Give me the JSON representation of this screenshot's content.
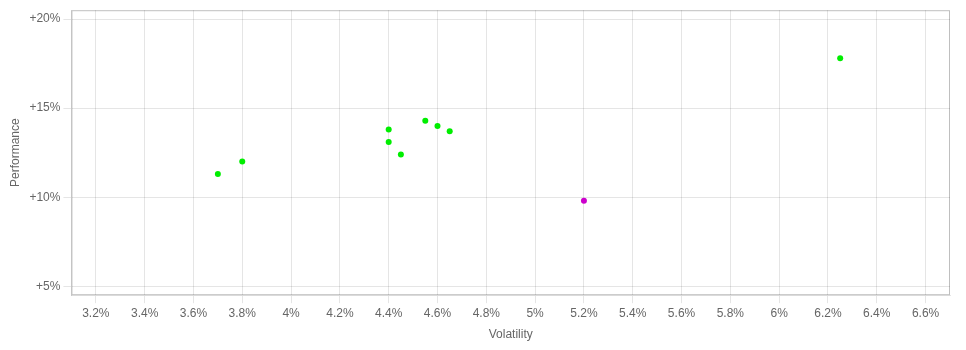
{
  "chart_data": {
    "type": "scatter",
    "xlabel": "Volatility",
    "ylabel": "Performance",
    "xlim": [
      0.031,
      0.067
    ],
    "ylim": [
      0.045,
      0.205
    ],
    "xticks": [
      {
        "value": 0.032,
        "label": "3.2%"
      },
      {
        "value": 0.034,
        "label": "3.4%"
      },
      {
        "value": 0.036,
        "label": "3.6%"
      },
      {
        "value": 0.038,
        "label": "3.8%"
      },
      {
        "value": 0.04,
        "label": "4%"
      },
      {
        "value": 0.042,
        "label": "4.2%"
      },
      {
        "value": 0.044,
        "label": "4.4%"
      },
      {
        "value": 0.046,
        "label": "4.6%"
      },
      {
        "value": 0.048,
        "label": "4.8%"
      },
      {
        "value": 0.05,
        "label": "5%"
      },
      {
        "value": 0.052,
        "label": "5.2%"
      },
      {
        "value": 0.054,
        "label": "5.4%"
      },
      {
        "value": 0.056,
        "label": "5.6%"
      },
      {
        "value": 0.058,
        "label": "5.8%"
      },
      {
        "value": 0.06,
        "label": "6%"
      },
      {
        "value": 0.062,
        "label": "6.2%"
      },
      {
        "value": 0.064,
        "label": "6.4%"
      },
      {
        "value": 0.066,
        "label": "6.6%"
      }
    ],
    "yticks": [
      {
        "value": 0.05,
        "label": "+5%"
      },
      {
        "value": 0.1,
        "label": "+10%"
      },
      {
        "value": 0.15,
        "label": "+15%"
      },
      {
        "value": 0.2,
        "label": "+20%"
      }
    ],
    "grid": true,
    "series": [
      {
        "color": "#00ee00",
        "x": [
          0.038,
          0.037,
          0.044,
          0.0445,
          0.044,
          0.0455,
          0.046,
          0.0465,
          0.0625
        ],
        "values": [
          0.12,
          0.113,
          0.131,
          0.124,
          0.138,
          0.143,
          0.14,
          0.137,
          0.178
        ]
      },
      {
        "color": "#cc00cc",
        "x": [
          0.052
        ],
        "values": [
          0.098
        ]
      }
    ]
  }
}
